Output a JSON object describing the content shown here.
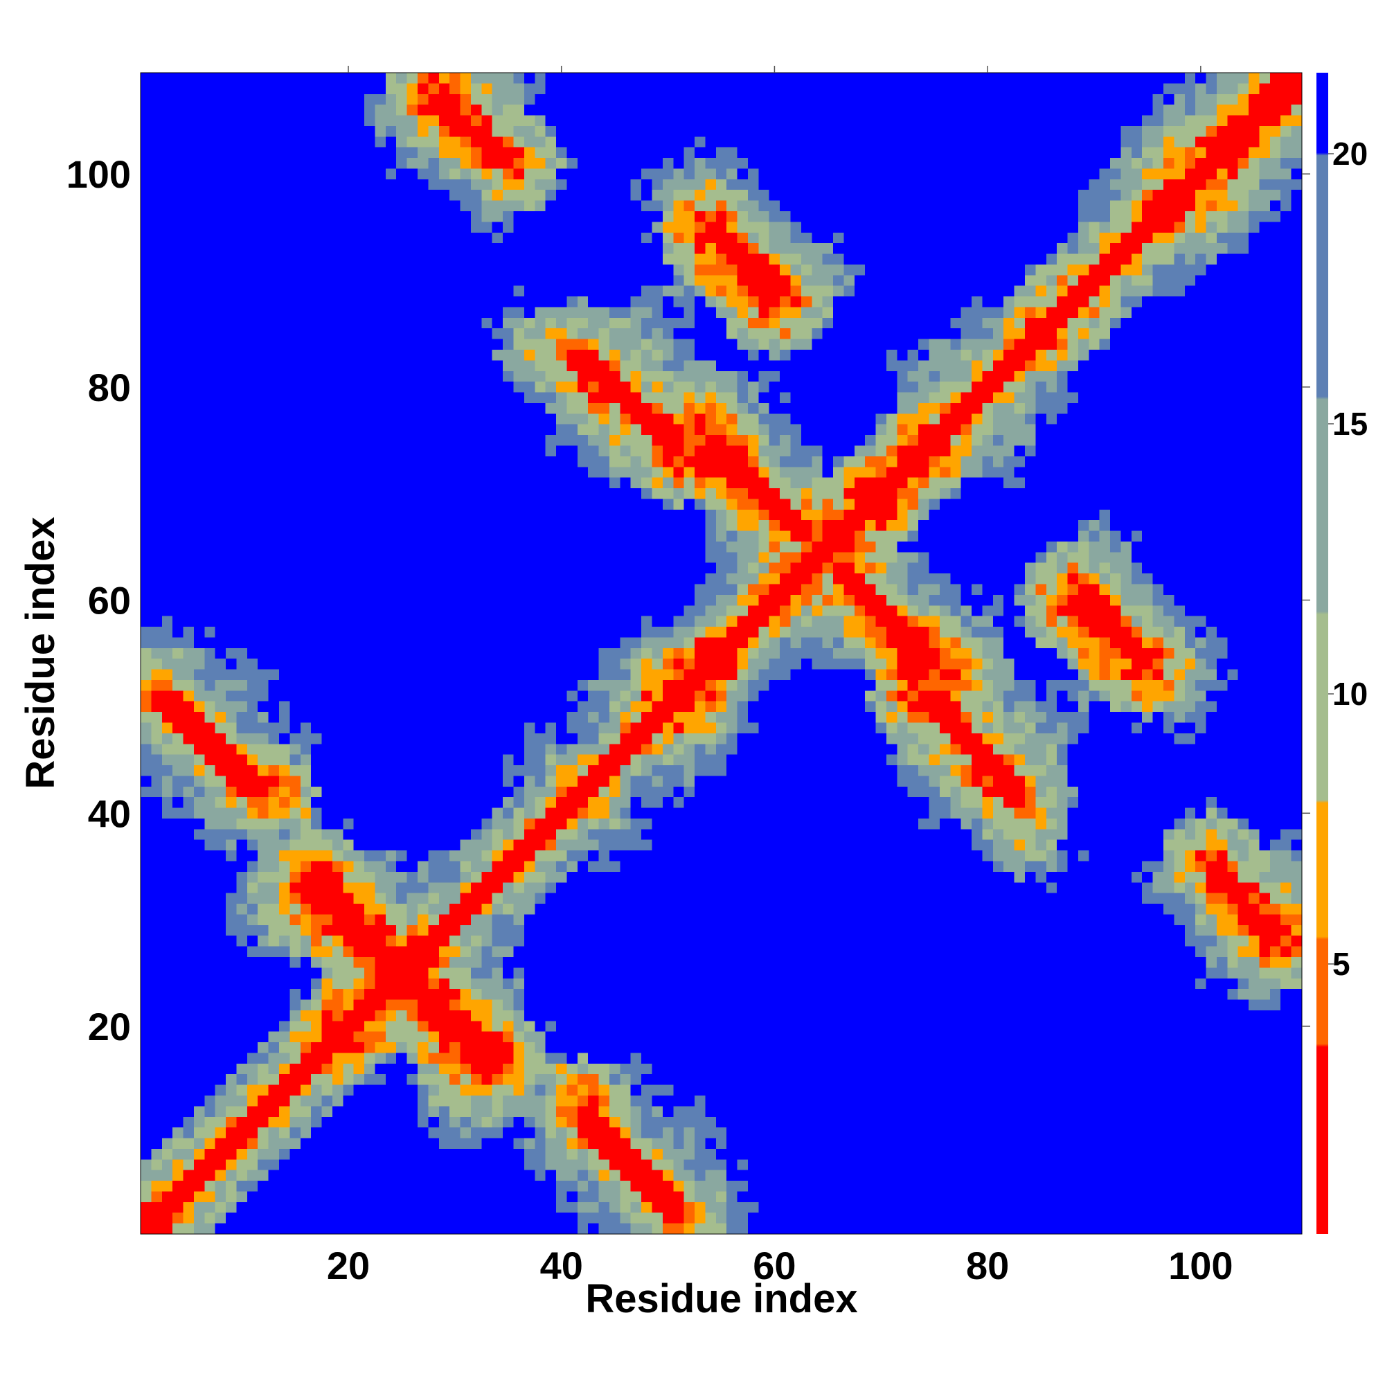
{
  "chart_data": {
    "type": "heatmap",
    "title": "",
    "xlabel": "Residue index",
    "ylabel": "Residue index",
    "xlim": [
      0.5,
      109.5
    ],
    "ylim": [
      0.5,
      109.5
    ],
    "n_residues": 109,
    "x_ticks": [
      20,
      40,
      60,
      80,
      100
    ],
    "y_ticks": [
      20,
      40,
      60,
      80,
      100
    ],
    "x_tick_labels": [
      "20",
      "40",
      "60",
      "80",
      "100"
    ],
    "y_tick_labels": [
      "20",
      "40",
      "60",
      "80",
      "100"
    ],
    "colorbar": {
      "range": [
        0,
        21.5
      ],
      "ticks": [
        5,
        10,
        15,
        20
      ],
      "tick_labels": [
        "5",
        "10",
        "15",
        "20"
      ],
      "colors": {
        "very_close": "#ff0000",
        "close": "#ff6600",
        "contact": "#ffa500",
        "near": "#a5bd8e",
        "medium": "#8aa8a0",
        "far": "#5d80b4",
        "beyond": "#0000ff"
      }
    },
    "features": {
      "diagonal": "distance ~0-4 along i=j",
      "contact_segments": [
        {
          "from": [
            2,
            51
          ],
          "to": [
            11,
            42
          ]
        },
        {
          "from": [
            16,
            34
          ],
          "to": [
            24,
            26
          ]
        },
        {
          "from": [
            26,
            24
          ],
          "to": [
            34,
            16
          ]
        },
        {
          "from": [
            42,
            12
          ],
          "to": [
            51,
            3
          ]
        },
        {
          "from": [
            28,
            107
          ],
          "to": [
            35,
            101
          ]
        },
        {
          "from": [
            54,
            95
          ],
          "to": [
            61,
            89
          ]
        },
        {
          "from": [
            41,
            83
          ],
          "to": [
            51,
            75
          ]
        },
        {
          "from": [
            54,
            75
          ],
          "to": [
            63,
            66
          ]
        },
        {
          "from": [
            66,
            63
          ],
          "to": [
            75,
            54
          ]
        },
        {
          "from": [
            74,
            51
          ],
          "to": [
            83,
            42
          ]
        },
        {
          "from": [
            88,
            60
          ],
          "to": [
            95,
            54
          ]
        },
        {
          "from": [
            101,
            35
          ],
          "to": [
            107,
            28
          ]
        }
      ]
    }
  }
}
